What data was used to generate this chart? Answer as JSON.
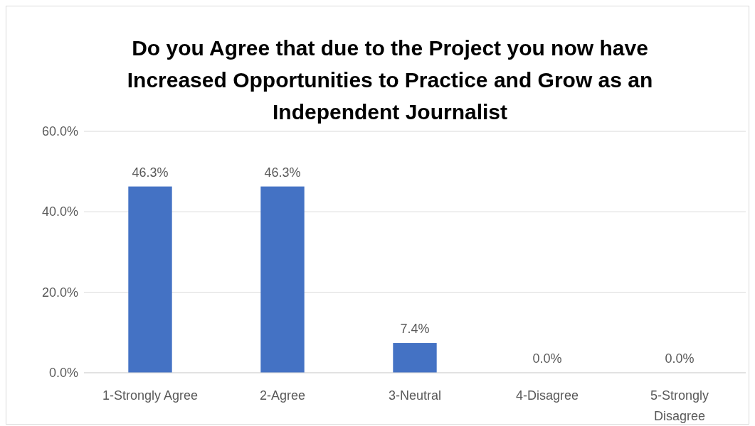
{
  "chart_data": {
    "type": "bar",
    "title": "Do you Agree that due to the Project you now have Increased Opportunities to Practice and Grow as an Independent Journalist",
    "categories": [
      "1-Strongly Agree",
      "2-Agree",
      "3-Neutral",
      "4-Disagree",
      "5-Strongly Disagree"
    ],
    "values": [
      46.3,
      46.3,
      7.4,
      0,
      0
    ],
    "value_labels": [
      "46.3%",
      "46.3%",
      "7.4%",
      "0.0%",
      "0.0%"
    ],
    "color": "#4472c4",
    "ylim": [
      0,
      60
    ],
    "yticks": [
      {
        "value": 0,
        "label": "0.0%"
      },
      {
        "value": 20,
        "label": "20.0%"
      },
      {
        "value": 40,
        "label": "40.0%"
      },
      {
        "value": 60,
        "label": "60.0%"
      }
    ],
    "grid": "y"
  }
}
